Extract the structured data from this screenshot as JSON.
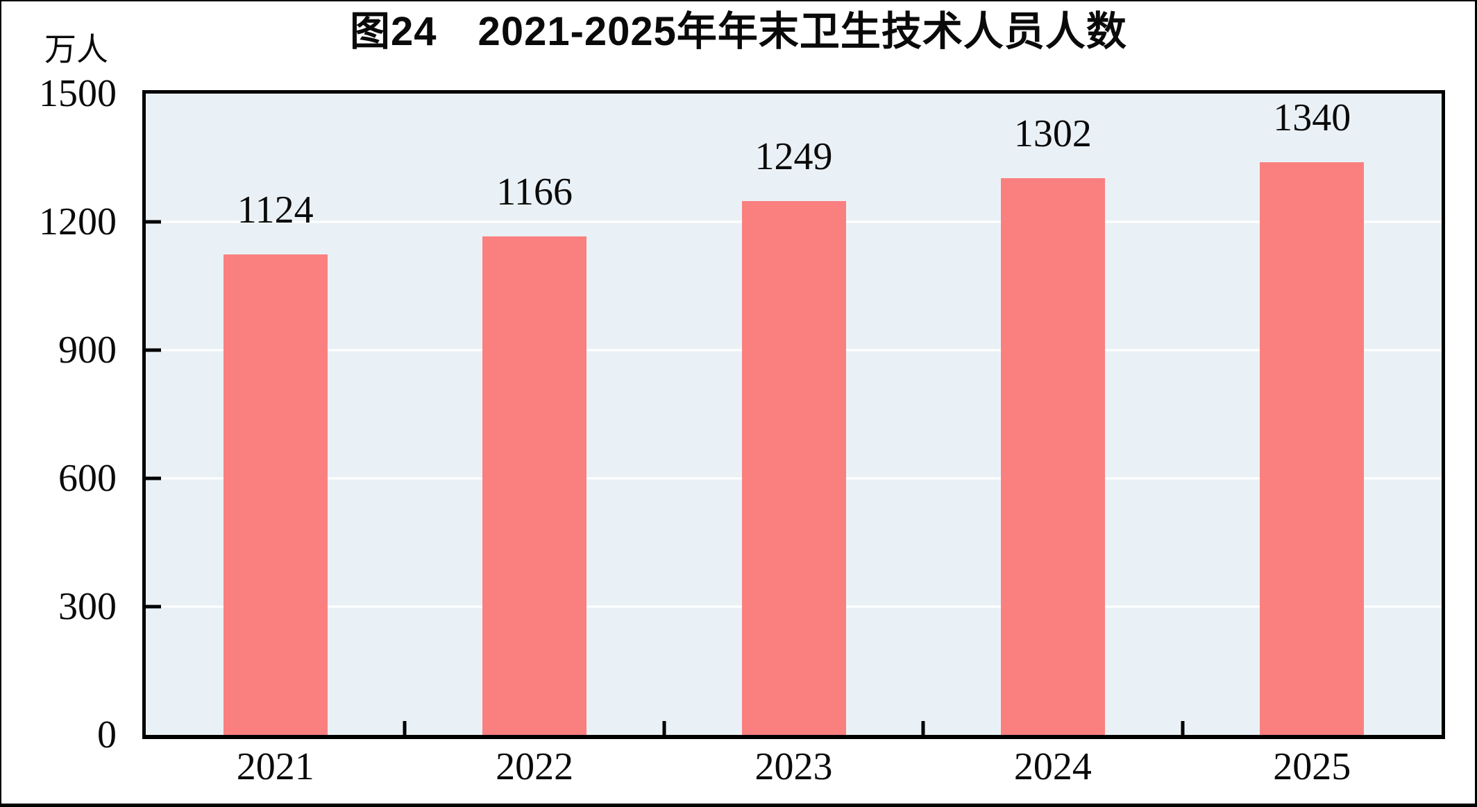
{
  "chart_data": {
    "type": "bar",
    "title": "图24　2021-2025年年末卫生技术人员人数",
    "ylabel": "万人",
    "xlabel": "",
    "categories": [
      "2021",
      "2022",
      "2023",
      "2024",
      "2025"
    ],
    "values": [
      1124,
      1166,
      1249,
      1302,
      1340
    ],
    "ylim": [
      0,
      1500
    ],
    "yticks": [
      0,
      300,
      600,
      900,
      1200,
      1500
    ],
    "grid": "horizontal white gridlines at 300/600/900/1200",
    "legend_position": "none",
    "bar_color": "#f9807f",
    "plot_background": "#eaf1f6",
    "gridline_color": "#ffffff",
    "axis_color": "#000000"
  },
  "header": {
    "title": "图24　2021-2025年年末卫生技术人员人数",
    "unit_label": "万人"
  },
  "y_axis": {
    "tick_labels": [
      "1500",
      "1200",
      "900",
      "600",
      "300",
      "0"
    ]
  },
  "x_axis": {
    "tick_labels": [
      "2021",
      "2022",
      "2023",
      "2024",
      "2025"
    ]
  },
  "bars": [
    {
      "year": "2021",
      "label": "1124"
    },
    {
      "year": "2022",
      "label": "1166"
    },
    {
      "year": "2023",
      "label": "1249"
    },
    {
      "year": "2024",
      "label": "1302"
    },
    {
      "year": "2025",
      "label": "1340"
    }
  ]
}
